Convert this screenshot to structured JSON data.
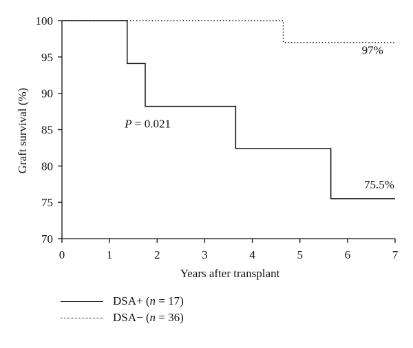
{
  "chart_data": {
    "type": "line",
    "xlabel": "Years after transplant",
    "ylabel": "Graft survival (%)",
    "xlim": [
      0,
      7
    ],
    "ylim": [
      70,
      100
    ],
    "x_ticks": [
      "0",
      "1",
      "2",
      "3",
      "4",
      "5",
      "6",
      "7"
    ],
    "y_ticks": [
      "70",
      "75",
      "80",
      "85",
      "90",
      "95",
      "100"
    ],
    "grid": false,
    "series": [
      {
        "name": "DSA+ (n = 17)",
        "style": "solid",
        "step": true,
        "x": [
          0,
          1.37,
          1.75,
          3.65,
          5.65,
          7
        ],
        "y": [
          100,
          94.1,
          88.2,
          82.4,
          75.5,
          75.5
        ]
      },
      {
        "name": "DSA− (n = 36)",
        "style": "dotted",
        "step": true,
        "x": [
          0,
          4.65,
          7
        ],
        "y": [
          100,
          97,
          97
        ]
      }
    ],
    "annotations": [
      {
        "text": "97%",
        "x": 6.3,
        "y": 95.4
      },
      {
        "text": "75.5%",
        "x": 6.35,
        "y": 76.9
      },
      {
        "text_prefix": "P",
        "text": " = 0.021",
        "x": 1.32,
        "y": 85.3
      }
    ],
    "legend": {
      "placement": "bottom-left",
      "entries": [
        {
          "label": "DSA+ (",
          "n": "n",
          "rest": " = 17)",
          "style": "solid"
        },
        {
          "label": "DSA− (",
          "n": "n",
          "rest": " = 36)",
          "style": "dotted"
        }
      ]
    }
  }
}
